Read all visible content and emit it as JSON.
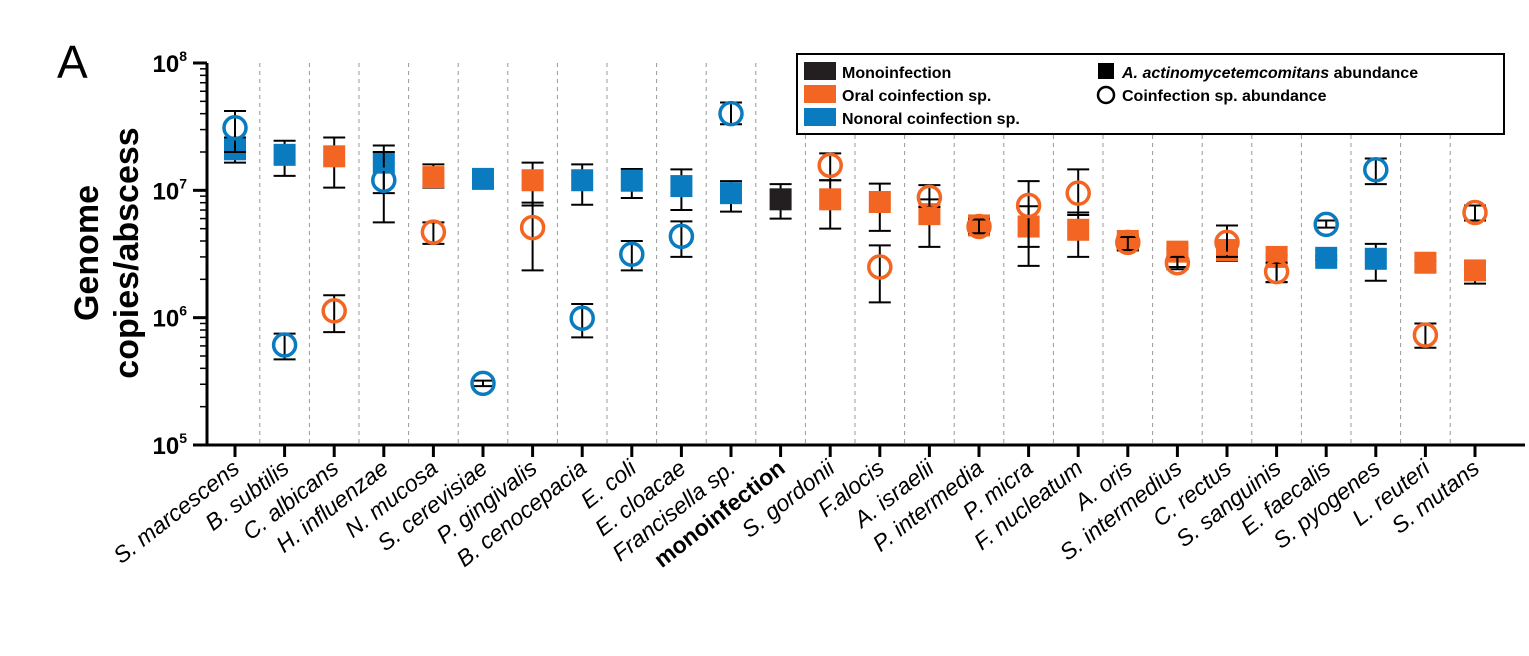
{
  "panel_label": "A",
  "chart_data": {
    "type": "scatter",
    "title": "",
    "xlabel": "",
    "ylabel_lines": [
      "Genome",
      "copies/abscess"
    ],
    "yscale": "log",
    "ylim": [
      100000,
      100000000
    ],
    "yticks": [
      {
        "value": 100000,
        "base": "10",
        "exp": "5"
      },
      {
        "value": 1000000,
        "base": "10",
        "exp": "6"
      },
      {
        "value": 10000000,
        "base": "10",
        "exp": "7"
      },
      {
        "value": 100000000,
        "base": "10",
        "exp": "8"
      }
    ],
    "category_separators": "dashed",
    "colors": {
      "monoinfection": "#231f20",
      "oral": "#f26522",
      "nonoral": "#0a7bbf"
    },
    "legend": {
      "position": "top-right",
      "color_entries": [
        {
          "key": "monoinfection",
          "label": "Monoinfection"
        },
        {
          "key": "oral",
          "label": "Oral coinfection sp."
        },
        {
          "key": "nonoral",
          "label": "Nonoral coinfection sp."
        }
      ],
      "marker_entries": [
        {
          "marker": "square",
          "label": "A. actinomycetemcomitans",
          "suffix": " abundance"
        },
        {
          "marker": "circle",
          "label": "Coinfection sp. abundance",
          "suffix": ""
        }
      ]
    },
    "categories": [
      {
        "label": "S. marcescens",
        "group": "nonoral",
        "square": 21000000,
        "sq_err": [
          16500000,
          26000000
        ],
        "circle": 31000000,
        "ci_err": [
          20000000,
          42000000
        ]
      },
      {
        "label": "B. subtilis",
        "group": "nonoral",
        "square": 19000000,
        "sq_err": [
          13000000,
          24500000
        ],
        "circle": 610000,
        "ci_err": [
          470000,
          750000
        ]
      },
      {
        "label": "C. albicans",
        "group": "oral",
        "square": 18500000,
        "sq_err": [
          10500000,
          26000000
        ],
        "circle": 1130000,
        "ci_err": [
          770000,
          1500000
        ]
      },
      {
        "label": "H. influenzae",
        "group": "nonoral",
        "square": 16500000,
        "sq_err": [
          9500000,
          22500000
        ],
        "circle": 12000000,
        "ci_err": [
          5600000,
          20000000
        ]
      },
      {
        "label": "N. mucosa",
        "group": "oral",
        "square": 12700000,
        "sq_err": [
          10500000,
          16000000
        ],
        "circle": 4700000,
        "ci_err": [
          3800000,
          5600000
        ]
      },
      {
        "label": "S. cerevisiae",
        "group": "nonoral",
        "square": 12300000,
        "sq_err": [
          11500000,
          13200000
        ],
        "circle": 305000,
        "ci_err": [
          290000,
          320000
        ]
      },
      {
        "label": "P. gingivalis",
        "group": "oral",
        "square": 12000000,
        "sq_err": [
          7600000,
          16500000
        ],
        "circle": 5100000,
        "ci_err": [
          2350000,
          8000000
        ]
      },
      {
        "label": "B. cenocepacia",
        "group": "nonoral",
        "square": 12000000,
        "sq_err": [
          7700000,
          16000000
        ],
        "circle": 990000,
        "ci_err": [
          700000,
          1280000
        ]
      },
      {
        "label": "E. coli",
        "group": "nonoral",
        "square": 11900000,
        "sq_err": [
          8700000,
          14700000
        ],
        "circle": 3150000,
        "ci_err": [
          2350000,
          4000000
        ]
      },
      {
        "label": "E. cloacae",
        "group": "nonoral",
        "square": 10800000,
        "sq_err": [
          7000000,
          14600000
        ],
        "circle": 4350000,
        "ci_err": [
          3000000,
          5700000
        ]
      },
      {
        "label": "Francisella sp.",
        "group": "nonoral",
        "square": 9500000,
        "sq_err": [
          6800000,
          11800000
        ],
        "circle": 40000000,
        "ci_err": [
          33000000,
          49000000
        ]
      },
      {
        "label": "monoinfection",
        "group": "monoinfection",
        "square": 8500000,
        "sq_err": [
          6000000,
          11200000
        ],
        "circle": null,
        "ci_err": null
      },
      {
        "label": "S. gordonii",
        "group": "oral",
        "square": 8500000,
        "sq_err": [
          5000000,
          12000000
        ],
        "circle": 15700000,
        "ci_err": [
          12000000,
          19500000
        ]
      },
      {
        "label": "F.alocis",
        "group": "oral",
        "square": 8100000,
        "sq_err": [
          4800000,
          11300000
        ],
        "circle": 2500000,
        "ci_err": [
          1320000,
          3700000
        ]
      },
      {
        "label": "A. israelii",
        "group": "oral",
        "square": 6500000,
        "sq_err": [
          3600000,
          8500000
        ],
        "circle": 8800000,
        "ci_err": [
          7400000,
          11000000
        ]
      },
      {
        "label": "P. intermedia",
        "group": "oral",
        "square": 5300000,
        "sq_err": [
          4700000,
          5900000
        ],
        "circle": 5200000,
        "ci_err": [
          4600000,
          5900000
        ]
      },
      {
        "label": "P. micra",
        "group": "oral",
        "square": 5200000,
        "sq_err": [
          2550000,
          7500000
        ],
        "circle": 7600000,
        "ci_err": [
          3600000,
          11800000
        ]
      },
      {
        "label": "F. nucleatum",
        "group": "oral",
        "square": 4900000,
        "sq_err": [
          3000000,
          6700000
        ],
        "circle": 9500000,
        "ci_err": [
          6400000,
          14600000
        ]
      },
      {
        "label": "A. oris",
        "group": "oral",
        "square": 4000000,
        "sq_err": [
          3500000,
          4400000
        ],
        "circle": 3900000,
        "ci_err": [
          3400000,
          4300000
        ]
      },
      {
        "label": "S. intermedius",
        "group": "oral",
        "square": 3300000,
        "sq_err": [
          2500000,
          3500000
        ],
        "circle": 2700000,
        "ci_err": [
          2400000,
          3000000
        ]
      },
      {
        "label": "C. rectus",
        "group": "oral",
        "square": 3400000,
        "sq_err": [
          2800000,
          5300000
        ],
        "circle": 3900000,
        "ci_err": [
          3000000,
          5300000
        ]
      },
      {
        "label": "S. sanguinis",
        "group": "oral",
        "square": 3000000,
        "sq_err": [
          1900000,
          3100000
        ],
        "circle": 2300000,
        "ci_err": [
          1900000,
          2700000
        ]
      },
      {
        "label": "E. faecalis",
        "group": "nonoral",
        "square": 2950000,
        "sq_err": [
          2850000,
          3050000
        ],
        "circle": 5400000,
        "ci_err": [
          5100000,
          5800000
        ]
      },
      {
        "label": "S. pyogenes",
        "group": "nonoral",
        "square": 2900000,
        "sq_err": [
          1950000,
          3800000
        ],
        "circle": 14500000,
        "ci_err": [
          11200000,
          17800000
        ]
      },
      {
        "label": "L. reuteri",
        "group": "oral",
        "square": 2700000,
        "sq_err": [
          2300000,
          2800000
        ],
        "circle": 730000,
        "ci_err": [
          580000,
          900000
        ]
      },
      {
        "label": "S. mutans",
        "group": "oral",
        "square": 2350000,
        "sq_err": [
          1850000,
          2800000
        ],
        "circle": 6700000,
        "ci_err": [
          5800000,
          7600000
        ]
      }
    ]
  }
}
